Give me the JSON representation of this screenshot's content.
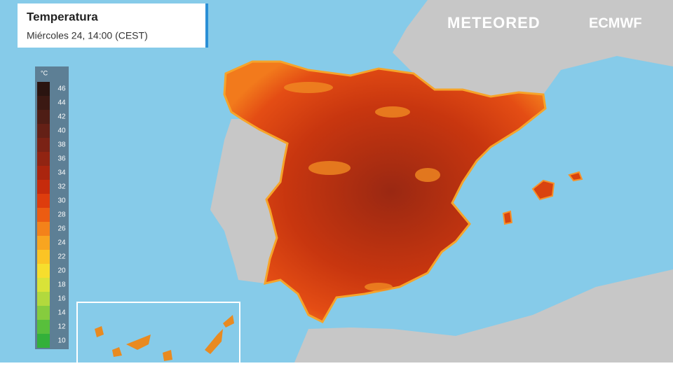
{
  "header": {
    "title": "Temperatura",
    "subtitle": "Miércoles 24, 14:00 (CEST)"
  },
  "logos": [
    "METEORED",
    "ECMWF"
  ],
  "legend": {
    "unit": "°C",
    "items": [
      {
        "value": 46,
        "color": "#2a1410"
      },
      {
        "value": 44,
        "color": "#3b1913"
      },
      {
        "value": 42,
        "color": "#4e1d15"
      },
      {
        "value": 40,
        "color": "#642016"
      },
      {
        "value": 38,
        "color": "#7a2215"
      },
      {
        "value": 36,
        "color": "#912412"
      },
      {
        "value": 34,
        "color": "#aa250e"
      },
      {
        "value": 32,
        "color": "#c62b0c"
      },
      {
        "value": 30,
        "color": "#de3d0d"
      },
      {
        "value": 28,
        "color": "#ec5c12"
      },
      {
        "value": 26,
        "color": "#f3821a"
      },
      {
        "value": 24,
        "color": "#f8a520"
      },
      {
        "value": 22,
        "color": "#fbc425"
      },
      {
        "value": 20,
        "color": "#f6de2d"
      },
      {
        "value": 18,
        "color": "#d9e338"
      },
      {
        "value": 16,
        "color": "#b2d93d"
      },
      {
        "value": 14,
        "color": "#86cc3e"
      },
      {
        "value": 12,
        "color": "#58bf3c"
      },
      {
        "value": 10,
        "color": "#33b03a"
      }
    ]
  }
}
